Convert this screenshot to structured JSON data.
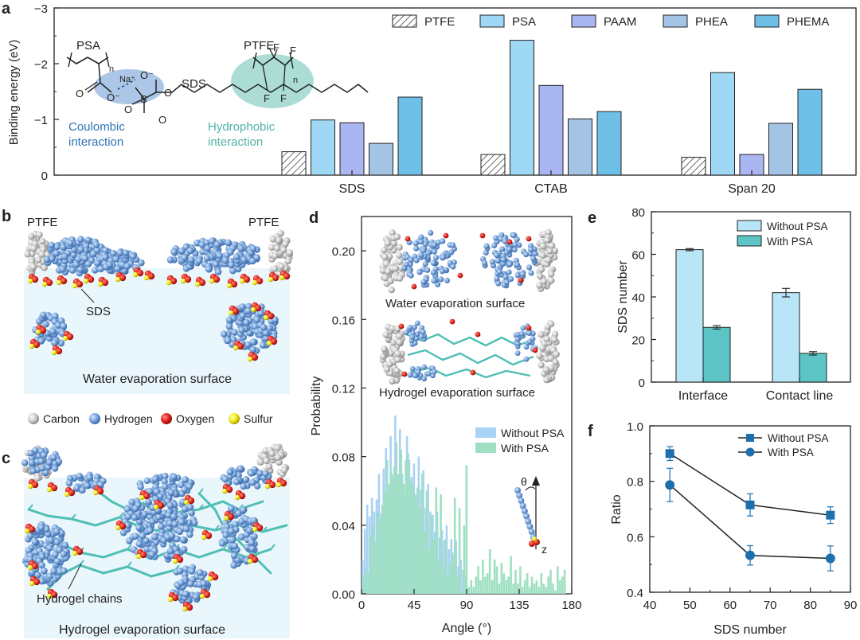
{
  "colors": {
    "ptfe": "#ffffff",
    "psa": "#9fd8f4",
    "paam": "#aab6f2",
    "phea": "#a4c4e6",
    "phema": "#6fc0e8",
    "without_psa_e": "#b9e6f6",
    "with_psa_e": "#5cc4c4",
    "without_psa_d": "#a9d2f4",
    "with_psa_d": "#9fe0c2",
    "line_f": "#1e6fae",
    "water_bg": "#e9f6fc",
    "carbon": "#c8c8c8",
    "hydrogen": "#6f9fd6",
    "oxygen": "#e0241b",
    "sulfur": "#f2ea11",
    "hydrogel": "#4fbfb3"
  },
  "panel_a": {
    "letter": "a",
    "chemistry": {
      "psa": "PSA",
      "n1": "n",
      "na": "Na⁺",
      "o_minus1": "O⁻",
      "o1": "O",
      "o_minus2": "O⁻",
      "s": "S",
      "o2": "O",
      "o3": "O",
      "o4": "O",
      "sds": "SDS",
      "ptfe": "PTFE",
      "f": "F",
      "n2": "n",
      "coulombic": "Coulombic",
      "coulombic2": "interaction",
      "hydrophobic": "Hydrophobic",
      "hydrophobic2": "interaction"
    }
  },
  "panel_b": {
    "letter": "b",
    "ptfe_left": "PTFE",
    "ptfe_right": "PTFE",
    "sds": "SDS",
    "caption": "Water evaporation surface",
    "legend": [
      "Carbon",
      "Hydrogen",
      "Oxygen",
      "Sulfur"
    ]
  },
  "panel_c": {
    "letter": "c",
    "chains": "Hydrogel chains",
    "caption": "Hydrogel evaporation surface"
  },
  "panel_d_insets": {
    "letter": "d",
    "top": "Water evaporation surface",
    "bottom": "Hydrogel evaporation surface",
    "theta": "θ",
    "z": "z"
  },
  "panel_e_letter": "e",
  "panel_f_letter": "f",
  "chart_data": [
    {
      "id": "a",
      "type": "bar",
      "title": "",
      "ylabel": "Binding energy (eV)",
      "ylim": [
        0,
        -3
      ],
      "yticks": [
        0,
        -1,
        -2,
        -3
      ],
      "categories": [
        "SDS",
        "CTAB",
        "Span 20"
      ],
      "series": [
        {
          "name": "PTFE",
          "values": [
            -0.42,
            -0.37,
            -0.32
          ]
        },
        {
          "name": "PSA",
          "values": [
            -0.99,
            -2.42,
            -1.84
          ]
        },
        {
          "name": "PAAM",
          "values": [
            -0.94,
            -1.61,
            -0.37
          ]
        },
        {
          "name": "PHEA",
          "values": [
            -0.57,
            -1.01,
            -0.93
          ]
        },
        {
          "name": "PHEMA",
          "values": [
            -1.4,
            -1.14,
            -1.54
          ]
        }
      ]
    },
    {
      "id": "d",
      "type": "bar",
      "xlabel": "Angle (°)",
      "ylabel": "Probability",
      "xlim": [
        0,
        180
      ],
      "ylim": [
        0,
        0.22
      ],
      "xticks": [
        0,
        45,
        90,
        135,
        180
      ],
      "yticks": [
        "0.00",
        "0.04",
        "0.08",
        "0.12",
        "0.16",
        "0.20"
      ],
      "bin_width": 2,
      "series": [
        {
          "name": "Without PSA",
          "x": [
            1,
            3,
            5,
            7,
            9,
            11,
            13,
            15,
            17,
            19,
            21,
            23,
            25,
            27,
            29,
            31,
            33,
            35,
            37,
            39,
            41,
            43,
            45,
            47,
            49,
            51,
            53,
            55,
            57,
            59,
            61,
            63,
            65,
            67,
            69,
            71,
            73,
            75,
            77,
            79,
            81,
            83,
            85,
            87,
            89
          ],
          "values": [
            0.02,
            0.038,
            0.052,
            0.045,
            0.056,
            0.048,
            0.055,
            0.07,
            0.047,
            0.073,
            0.085,
            0.06,
            0.092,
            0.068,
            0.104,
            0.069,
            0.096,
            0.07,
            0.058,
            0.092,
            0.078,
            0.068,
            0.076,
            0.054,
            0.08,
            0.061,
            0.072,
            0.05,
            0.064,
            0.048,
            0.046,
            0.036,
            0.048,
            0.033,
            0.037,
            0.031,
            0.04,
            0.026,
            0.032,
            0.022,
            0.031,
            0.016,
            0.02,
            0.014,
            0.01
          ]
        },
        {
          "name": "With PSA",
          "x": [
            2,
            4,
            6,
            8,
            10,
            12,
            14,
            16,
            18,
            20,
            22,
            24,
            26,
            28,
            30,
            32,
            34,
            36,
            38,
            40,
            42,
            44,
            46,
            48,
            50,
            52,
            54,
            56,
            58,
            60,
            62,
            64,
            66,
            68,
            70,
            72,
            74,
            76,
            78,
            80,
            82,
            84,
            86,
            88,
            90,
            92,
            94,
            96,
            98,
            100,
            102,
            104,
            106,
            108,
            110,
            112,
            114,
            116,
            118,
            120,
            122,
            124,
            126,
            128,
            130,
            132,
            134,
            136,
            138,
            140,
            142,
            144,
            146,
            148,
            150,
            152,
            154,
            156,
            158,
            160,
            162,
            164,
            166,
            168,
            170,
            172,
            174
          ],
          "values": [
            0.01,
            0.014,
            0.012,
            0.034,
            0.04,
            0.03,
            0.048,
            0.044,
            0.052,
            0.06,
            0.078,
            0.064,
            0.07,
            0.074,
            0.088,
            0.07,
            0.084,
            0.064,
            0.078,
            0.082,
            0.066,
            0.064,
            0.058,
            0.062,
            0.05,
            0.07,
            0.036,
            0.06,
            0.026,
            0.046,
            0.032,
            0.062,
            0.02,
            0.058,
            0.014,
            0.032,
            0.01,
            0.018,
            0.024,
            0.056,
            0.01,
            0.05,
            0.002,
            0.04,
            0.075,
            0.004,
            0.008,
            0.004,
            0.01,
            0.016,
            0.008,
            0.02,
            0.01,
            0.012,
            0.026,
            0.008,
            0.02,
            0.016,
            0.006,
            0.018,
            0.012,
            0.008,
            0.01,
            0.022,
            0.006,
            0.014,
            0.006,
            0.016,
            0.004,
            0.008,
            0.012,
            0.004,
            0.01,
            0.006,
            0.008,
            0.004,
            0.012,
            0.006,
            0.004,
            0.01,
            0.014,
            0.006,
            0.002,
            0.016,
            0.008,
            0.01,
            0.014
          ]
        }
      ]
    },
    {
      "id": "e",
      "type": "bar",
      "ylabel": "SDS number",
      "ylim": [
        0,
        80
      ],
      "yticks": [
        0,
        20,
        40,
        60,
        80
      ],
      "categories": [
        "Interface",
        "Contact line"
      ],
      "series": [
        {
          "name": "Without PSA",
          "values": [
            62.2,
            42.0
          ],
          "errors": [
            0.5,
            2.0
          ]
        },
        {
          "name": "With PSA",
          "values": [
            25.7,
            13.5
          ],
          "errors": [
            0.8,
            0.8
          ]
        }
      ]
    },
    {
      "id": "f",
      "type": "line",
      "xlabel": "SDS number",
      "ylabel": "Ratio",
      "xlim": [
        40,
        90
      ],
      "ylim": [
        0.4,
        1.0
      ],
      "xticks": [
        40,
        50,
        60,
        70,
        80,
        90
      ],
      "yticks": [
        "0.4",
        "0.6",
        "0.8",
        "1.0"
      ],
      "series": [
        {
          "name": "Without PSA",
          "marker": "square",
          "x": [
            45,
            65,
            85
          ],
          "values": [
            0.9,
            0.715,
            0.678
          ],
          "errors": [
            0.025,
            0.04,
            0.03
          ]
        },
        {
          "name": "With PSA",
          "marker": "circle",
          "x": [
            45,
            65,
            85
          ],
          "values": [
            0.787,
            0.533,
            0.522
          ],
          "errors": [
            0.06,
            0.035,
            0.045
          ]
        }
      ]
    }
  ]
}
